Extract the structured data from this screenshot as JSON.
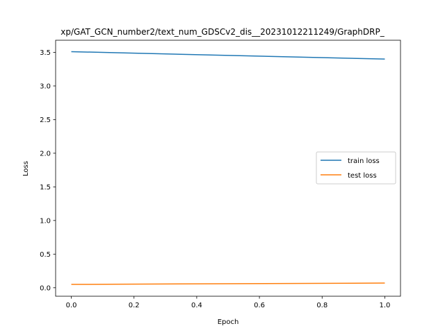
{
  "chart_data": {
    "type": "line",
    "title": "xp/GAT_GCN_number2/text_num_GDSCv2_dis__20231012211249/GraphDRP_",
    "xlabel": "Epoch",
    "ylabel": "Loss",
    "x": [
      0.0,
      1.0
    ],
    "xlim": [
      -0.05,
      1.05
    ],
    "ylim": [
      -0.126,
      3.68
    ],
    "x_ticks": [
      0.0,
      0.2,
      0.4,
      0.6,
      0.8,
      1.0
    ],
    "x_tick_labels": [
      "0.0",
      "0.2",
      "0.4",
      "0.6",
      "0.8",
      "1.0"
    ],
    "y_ticks": [
      0.0,
      0.5,
      1.0,
      1.5,
      2.0,
      2.5,
      3.0,
      3.5
    ],
    "y_tick_labels": [
      "0.0",
      "0.5",
      "1.0",
      "1.5",
      "2.0",
      "2.5",
      "3.0",
      "3.5"
    ],
    "grid": false,
    "legend_position": "center-right",
    "series": [
      {
        "name": "train loss",
        "values": [
          3.51,
          3.4
        ],
        "color": "#1f77b4"
      },
      {
        "name": "test loss",
        "values": [
          0.05,
          0.07
        ],
        "color": "#ff7f0e"
      }
    ]
  }
}
